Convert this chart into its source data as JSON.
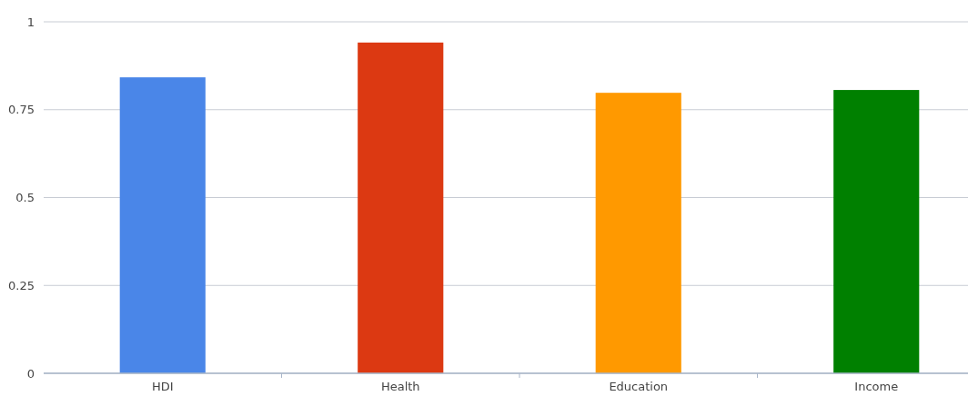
{
  "chart_data": {
    "type": "bar",
    "categories": [
      "HDI",
      "Health",
      "Education",
      "Income"
    ],
    "values": [
      0.842,
      0.941,
      0.798,
      0.806
    ],
    "colors": [
      "#4a86e8",
      "#dc3912",
      "#ff9900",
      "#008000"
    ],
    "ylim": [
      0,
      1
    ],
    "yticks": [
      0,
      0.25,
      0.5,
      0.75,
      1
    ],
    "grid": "y"
  }
}
